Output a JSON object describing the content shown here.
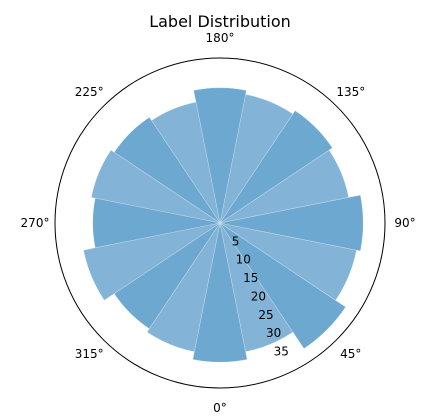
{
  "chart_data": {
    "type": "polar-bar",
    "title": "Label Distribution",
    "theta_zero_location": "S",
    "theta_direction": "counterclockwise",
    "angle_labels": [
      "0°",
      "45°",
      "90°",
      "135°",
      "180°",
      "225°",
      "270°",
      "315°"
    ],
    "angle_label_degrees": [
      0,
      45,
      90,
      135,
      180,
      225,
      270,
      315
    ],
    "radial_labels": [
      "5",
      "10",
      "15",
      "20",
      "25",
      "30",
      "35"
    ],
    "radial_ticks": [
      5,
      10,
      15,
      20,
      25,
      30,
      35
    ],
    "r_max": 41.5,
    "bin_width_deg": 22.5,
    "bins": [
      {
        "center_deg": 0,
        "value": 35
      },
      {
        "center_deg": 22.5,
        "value": 33
      },
      {
        "center_deg": 45,
        "value": 38
      },
      {
        "center_deg": 67.5,
        "value": 35
      },
      {
        "center_deg": 90,
        "value": 36
      },
      {
        "center_deg": 112.5,
        "value": 33
      },
      {
        "center_deg": 135,
        "value": 34
      },
      {
        "center_deg": 157.5,
        "value": 33
      },
      {
        "center_deg": 180,
        "value": 34
      },
      {
        "center_deg": 202.5,
        "value": 31
      },
      {
        "center_deg": 225,
        "value": 32
      },
      {
        "center_deg": 247.5,
        "value": 33
      },
      {
        "center_deg": 270,
        "value": 32
      },
      {
        "center_deg": 292.5,
        "value": 35
      },
      {
        "center_deg": 315,
        "value": 32
      },
      {
        "center_deg": 337.5,
        "value": 33
      }
    ],
    "bar_colors": [
      "#5d9ecb",
      "#76acd3"
    ],
    "bar_alpha": 0.9,
    "grid": false,
    "legend": "none"
  }
}
